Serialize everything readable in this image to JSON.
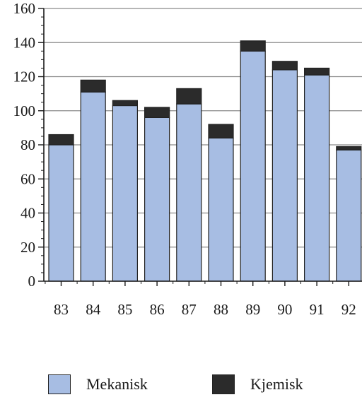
{
  "chart_data": {
    "type": "bar",
    "stacked": true,
    "categories": [
      "83",
      "84",
      "85",
      "86",
      "87",
      "88",
      "89",
      "90",
      "91",
      "92"
    ],
    "series": [
      {
        "name": "Mekanisk",
        "color": "#a7bde3",
        "values": [
          80,
          111,
          103,
          96,
          104,
          84,
          135,
          124,
          121,
          77
        ]
      },
      {
        "name": "Kjemisk",
        "color": "#2b2b2b",
        "values": [
          6,
          7,
          3,
          6,
          9,
          8,
          6,
          5,
          4,
          2
        ]
      }
    ],
    "yticks": [
      0,
      20,
      40,
      60,
      80,
      100,
      120,
      140,
      160
    ],
    "ylim": [
      0,
      160
    ],
    "grid": true,
    "legend_position": "bottom"
  }
}
